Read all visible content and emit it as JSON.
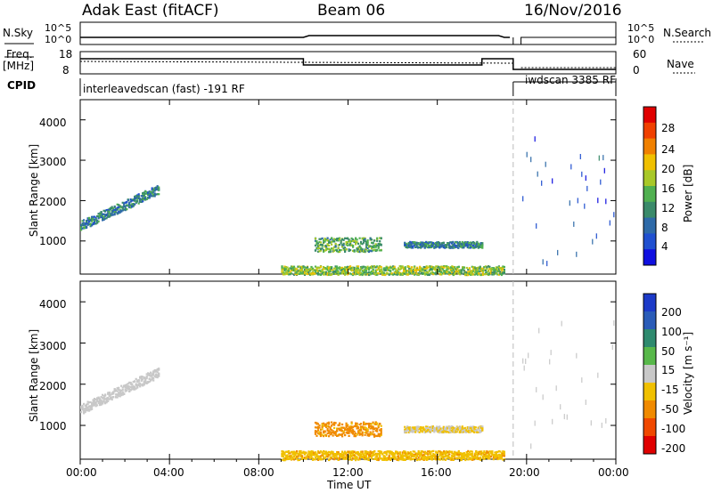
{
  "header": {
    "title": "Adak East (fitACF)",
    "beam": "Beam 06",
    "date": "16/Nov/2016"
  },
  "labels": {
    "nsky": "N.Sky",
    "nsearch": "N.Search",
    "freq": "Freq.",
    "freq_unit": "[MHz]",
    "nave": "Nave",
    "cpid": "CPID"
  },
  "ticks": {
    "nsky_left": [
      "10^5",
      "10^0"
    ],
    "nsky_right": [
      "10^5",
      "10^0"
    ],
    "freq_left": [
      "18",
      "8"
    ],
    "nave_right": [
      "60",
      "0"
    ]
  },
  "cpid_segments": [
    {
      "label": "interleavedscan (fast) -191 RF",
      "start_hour": 0,
      "end_hour": 19.25
    },
    {
      "label": "iwdscan 3385 RF",
      "start_hour": 19.75,
      "end_hour": 24
    }
  ],
  "colors": {
    "power_scale": [
      "#1010e0",
      "#2050d0",
      "#2e6aa8",
      "#3a8a6a",
      "#50b050",
      "#a8c828",
      "#f0c000",
      "#f08000",
      "#f04000",
      "#e00000"
    ],
    "velocity_scale": [
      "#1c3ac8",
      "#2a5cb8",
      "#2e8a6e",
      "#58b84a",
      "#c8c8c8",
      "#f0c000",
      "#f08a00",
      "#f04800",
      "#e00000"
    ]
  },
  "chart_data": [
    {
      "type": "heatmap",
      "panel": "power",
      "ylabel": "Slant Range [km]",
      "yticks": [
        "4000",
        "3000",
        "2000",
        "1000"
      ],
      "colorbar_label": "Power [dB]",
      "colorbar_ticks": [
        "28",
        "24",
        "20",
        "16",
        "12",
        "8",
        "4"
      ],
      "colorbar_range": [
        0,
        32
      ],
      "xlim_hours": [
        0,
        24
      ],
      "ylim_km": [
        180,
        4500
      ],
      "features": [
        {
          "hours": [
            0.0,
            3.5
          ],
          "range_km": [
            1300,
            2400
          ],
          "value": 10
        },
        {
          "hours": [
            10.5,
            13.5
          ],
          "range_km": [
            750,
            1100
          ],
          "value": 14
        },
        {
          "hours": [
            14.5,
            18.0
          ],
          "range_km": [
            850,
            1000
          ],
          "value": 10
        },
        {
          "hours": [
            9.0,
            19.0
          ],
          "range_km": [
            180,
            400
          ],
          "value": 16
        },
        {
          "hours": [
            19.75,
            24.0
          ],
          "range_km": [
            500,
            3600
          ],
          "value": 6
        }
      ]
    },
    {
      "type": "heatmap",
      "panel": "velocity",
      "ylabel": "Slant Range [km]",
      "yticks": [
        "4000",
        "3000",
        "2000",
        "1000"
      ],
      "colorbar_label": "Velocity [m s⁻¹]",
      "colorbar_ticks": [
        "200",
        "100",
        "50",
        "15",
        "-15",
        "-50",
        "-100",
        "-200"
      ],
      "xlim_hours": [
        0,
        24
      ],
      "ylim_km": [
        180,
        4500
      ],
      "xlabel": "Time UT",
      "xticks": [
        "00:00",
        "04:00",
        "08:00",
        "12:00",
        "16:00",
        "20:00",
        "00:00"
      ],
      "features": [
        {
          "hours": [
            0.0,
            3.5
          ],
          "range_km": [
            1300,
            2400
          ],
          "value": 0
        },
        {
          "hours": [
            10.5,
            13.5
          ],
          "range_km": [
            750,
            1100
          ],
          "value": -50
        },
        {
          "hours": [
            14.5,
            18.0
          ],
          "range_km": [
            850,
            1000
          ],
          "value": -15
        },
        {
          "hours": [
            9.0,
            19.0
          ],
          "range_km": [
            180,
            400
          ],
          "value": -30
        },
        {
          "hours": [
            19.75,
            24.0
          ],
          "range_km": [
            500,
            3600
          ],
          "value": 0
        }
      ]
    }
  ]
}
